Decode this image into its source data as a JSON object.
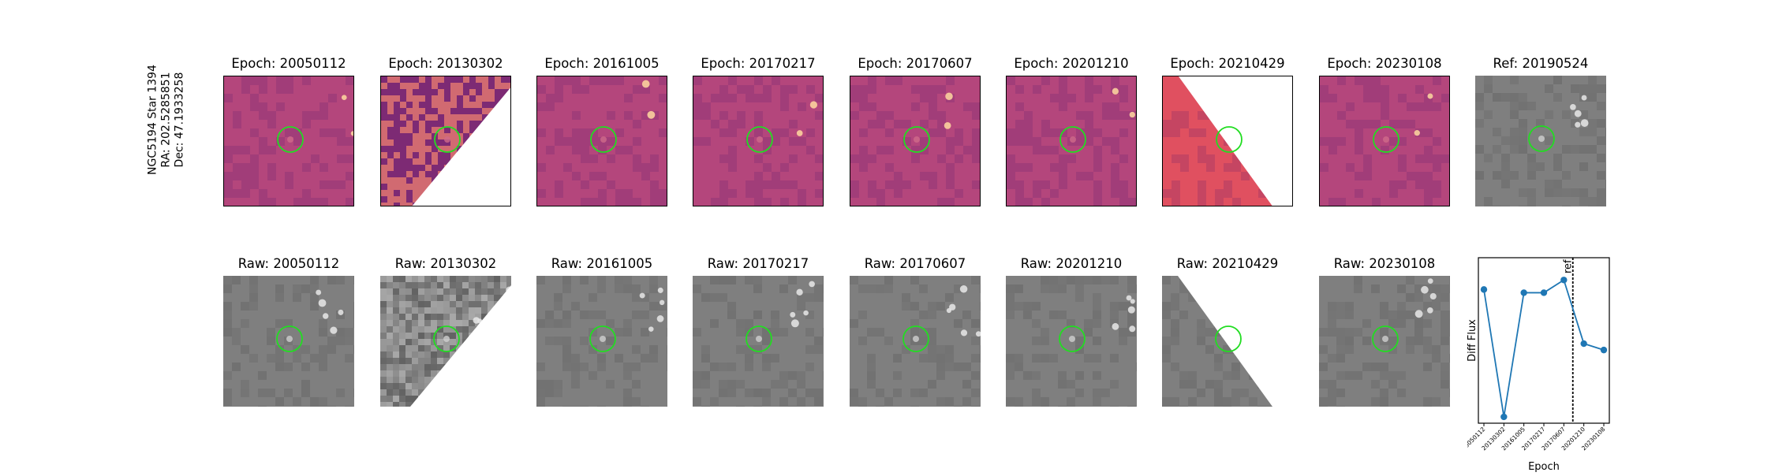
{
  "identifier": {
    "star": "NGC5194 Star 1394",
    "ra": "RA: 202.5285851",
    "dec": "Dec: 47.1933258"
  },
  "top_row": [
    {
      "title": "Epoch: 20050112",
      "kind": "diff",
      "mask": "none"
    },
    {
      "title": "Epoch: 20130302",
      "kind": "diff-noisy",
      "mask": "lower-right"
    },
    {
      "title": "Epoch: 20161005",
      "kind": "diff",
      "mask": "none"
    },
    {
      "title": "Epoch: 20170217",
      "kind": "diff",
      "mask": "none"
    },
    {
      "title": "Epoch: 20170607",
      "kind": "diff",
      "mask": "none"
    },
    {
      "title": "Epoch: 20201210",
      "kind": "diff",
      "mask": "none"
    },
    {
      "title": "Epoch: 20210429",
      "kind": "diff-flat",
      "mask": "upper-right"
    },
    {
      "title": "Epoch: 20230108",
      "kind": "diff",
      "mask": "none"
    },
    {
      "title": "Ref: 20190524",
      "kind": "gray",
      "mask": "none"
    }
  ],
  "bottom_row": [
    {
      "title": "Raw: 20050112",
      "kind": "gray",
      "mask": "none"
    },
    {
      "title": "Raw: 20130302",
      "kind": "gray-noisy",
      "mask": "lower-right"
    },
    {
      "title": "Raw: 20161005",
      "kind": "gray",
      "mask": "none"
    },
    {
      "title": "Raw: 20170217",
      "kind": "gray",
      "mask": "none"
    },
    {
      "title": "Raw: 20170607",
      "kind": "gray",
      "mask": "none"
    },
    {
      "title": "Raw: 20201210",
      "kind": "gray",
      "mask": "none"
    },
    {
      "title": "Raw: 20210429",
      "kind": "gray",
      "mask": "upper-right"
    },
    {
      "title": "Raw: 20230108",
      "kind": "gray",
      "mask": "none"
    }
  ],
  "colors": {
    "aperture": "#22dd22",
    "diff_base": "#b4467c",
    "diff_flat": "#e05060",
    "gray_base": "#7f7f7f",
    "series": "#1f77b4",
    "ref_line": "#000000"
  },
  "chart_data": {
    "type": "line",
    "x": [
      "20050112",
      "20130302",
      "20161005",
      "20170217",
      "20170607",
      "20201210",
      "20230108"
    ],
    "y": [
      0.6,
      -1.4,
      0.55,
      0.55,
      0.75,
      -0.25,
      -0.35
    ],
    "ylim": [
      -1.5,
      1.1
    ],
    "xlabel": "Epoch",
    "ylabel": "Diff Flux",
    "reference_line": {
      "x": "20190524",
      "label": "ref"
    },
    "grid": false
  }
}
